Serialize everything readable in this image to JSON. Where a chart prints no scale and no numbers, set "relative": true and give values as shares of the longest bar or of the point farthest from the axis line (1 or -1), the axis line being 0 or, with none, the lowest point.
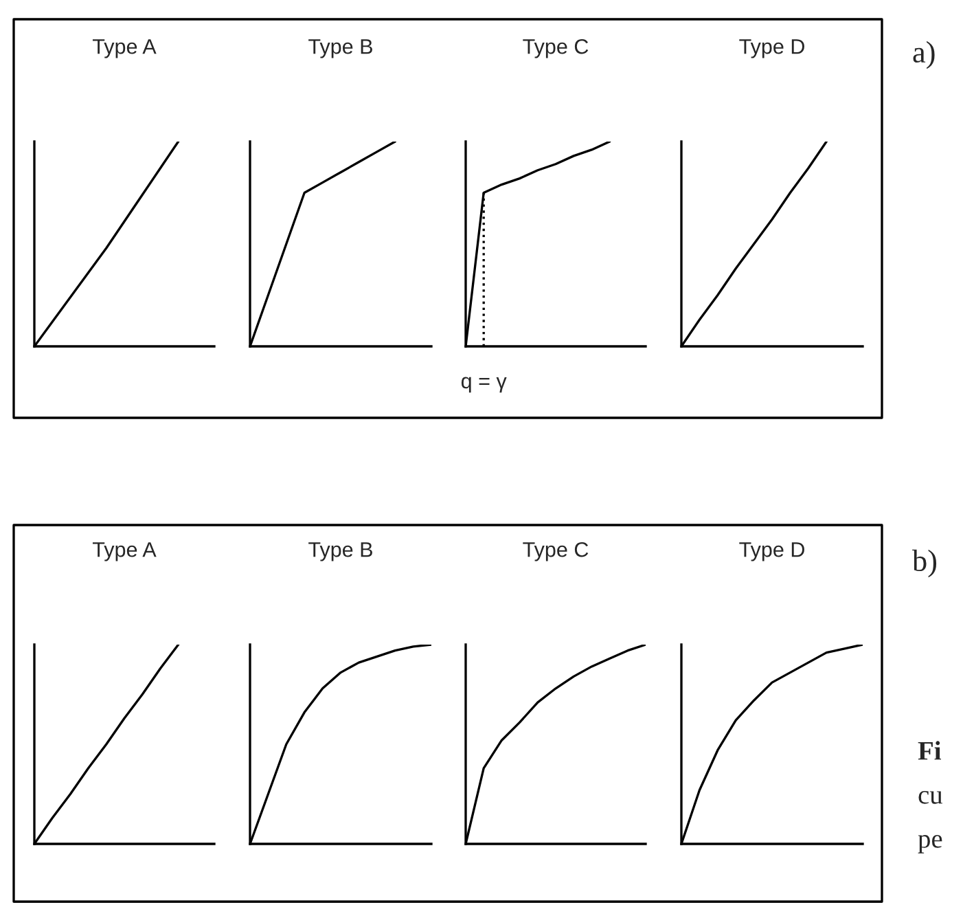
{
  "chart_data": [
    {
      "type": "line",
      "title": "Type A",
      "relative": true,
      "tick_labels": false,
      "annotations": [
        "a)"
      ],
      "categories": [
        null,
        null,
        null,
        null,
        null,
        null,
        null,
        null,
        null,
        null,
        null
      ],
      "series": [
        {
          "color": "#000000",
          "values": [
            0,
            0.12,
            0.24,
            0.36,
            0.48,
            0.61,
            0.74,
            0.87,
            1,
            null,
            null
          ]
        }
      ]
    },
    {
      "type": "line",
      "title": "Type B",
      "relative": true,
      "tick_labels": false,
      "categories": [
        null,
        null,
        null,
        null,
        null,
        null,
        null,
        null,
        null,
        null,
        null
      ],
      "series": [
        {
          "color": "#000000",
          "values": [
            0,
            0.25,
            0.5,
            0.75,
            0.8,
            0.85,
            0.9,
            0.95,
            1,
            null,
            null
          ]
        }
      ]
    },
    {
      "type": "line",
      "title": "Type C",
      "relative": true,
      "tick_labels": false,
      "categories": [
        null,
        null,
        null,
        null,
        null,
        null,
        null,
        null,
        null,
        null,
        null
      ],
      "annotations": [
        "q = γ"
      ],
      "series": [
        {
          "color": "#000000",
          "values": [
            0,
            0.75,
            0.79,
            0.82,
            0.86,
            0.89,
            0.93,
            0.96,
            1,
            null,
            null
          ]
        }
      ]
    },
    {
      "type": "line",
      "title": "Type D",
      "relative": true,
      "tick_labels": false,
      "categories": [
        null,
        null,
        null,
        null,
        null,
        null,
        null,
        null,
        null,
        null,
        null
      ],
      "series": [
        {
          "color": "#000000",
          "values": [
            0,
            0.13,
            0.25,
            0.38,
            0.5,
            0.62,
            0.75,
            0.87,
            1,
            null,
            null
          ]
        }
      ]
    },
    {
      "type": "line",
      "title": "Type A",
      "relative": true,
      "tick_labels": false,
      "annotations": [
        "b)",
        "Fi",
        "cu",
        "pe"
      ],
      "categories": [
        null,
        null,
        null,
        null,
        null,
        null,
        null,
        null,
        null,
        null,
        null
      ],
      "series": [
        {
          "color": "#000000",
          "values": [
            0,
            0.13,
            0.25,
            0.38,
            0.5,
            0.63,
            0.75,
            0.88,
            1,
            null,
            null
          ]
        }
      ]
    },
    {
      "type": "line",
      "title": "Type B",
      "relative": true,
      "tick_labels": false,
      "categories": [
        null,
        null,
        null,
        null,
        null,
        null,
        null,
        null,
        null,
        null,
        null
      ],
      "series": [
        {
          "color": "#000000",
          "values": [
            0,
            0.25,
            0.5,
            0.66,
            0.78,
            0.86,
            0.91,
            0.94,
            0.97,
            0.99,
            1
          ]
        }
      ]
    },
    {
      "type": "line",
      "title": "Type C",
      "relative": true,
      "tick_labels": false,
      "categories": [
        null,
        null,
        null,
        null,
        null,
        null,
        null,
        null,
        null,
        null,
        null
      ],
      "series": [
        {
          "color": "#000000",
          "values": [
            0,
            0.38,
            0.52,
            0.61,
            0.71,
            0.78,
            0.84,
            0.89,
            0.93,
            0.97,
            1
          ]
        }
      ]
    },
    {
      "type": "line",
      "title": "Type D",
      "relative": true,
      "tick_labels": false,
      "categories": [
        null,
        null,
        null,
        null,
        null,
        null,
        null,
        null,
        null,
        null,
        null
      ],
      "series": [
        {
          "color": "#000000",
          "values": [
            0,
            0.27,
            0.47,
            0.62,
            0.72,
            0.81,
            0.86,
            0.91,
            0.96,
            0.98,
            1
          ]
        }
      ]
    }
  ]
}
